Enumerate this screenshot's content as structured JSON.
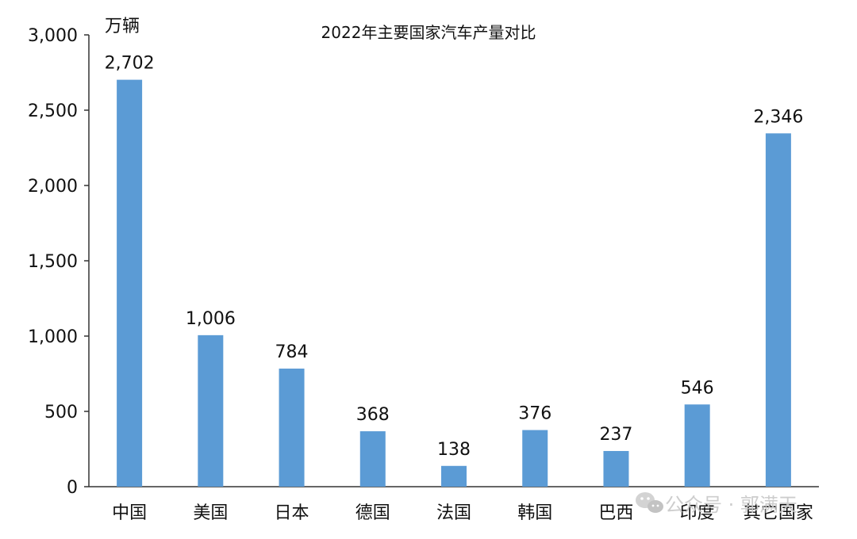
{
  "chart_data": {
    "type": "bar",
    "title": "2022年主要国家汽车产量对比",
    "unit": "万辆",
    "categories": [
      "中国",
      "美国",
      "日本",
      "德国",
      "法国",
      "韩国",
      "巴西",
      "印度",
      "其它国家"
    ],
    "values": [
      2702,
      1006,
      784,
      368,
      138,
      376,
      237,
      546,
      2346
    ],
    "data_labels": [
      "2,702",
      "1,006",
      "784",
      "368",
      "138",
      "376",
      "237",
      "546",
      "2,346"
    ],
    "ylim": [
      0,
      3000
    ],
    "yticks": [
      0,
      500,
      1000,
      1500,
      2000,
      2500,
      3000
    ],
    "ytick_labels": [
      "0",
      "500",
      "1,000",
      "1,500",
      "2,000",
      "2,500",
      "3,000"
    ],
    "grid": false,
    "bar_color": "#5b9bd5"
  },
  "watermark": {
    "text": "公众号 · 郭满天",
    "icon": "wechat-icon"
  }
}
